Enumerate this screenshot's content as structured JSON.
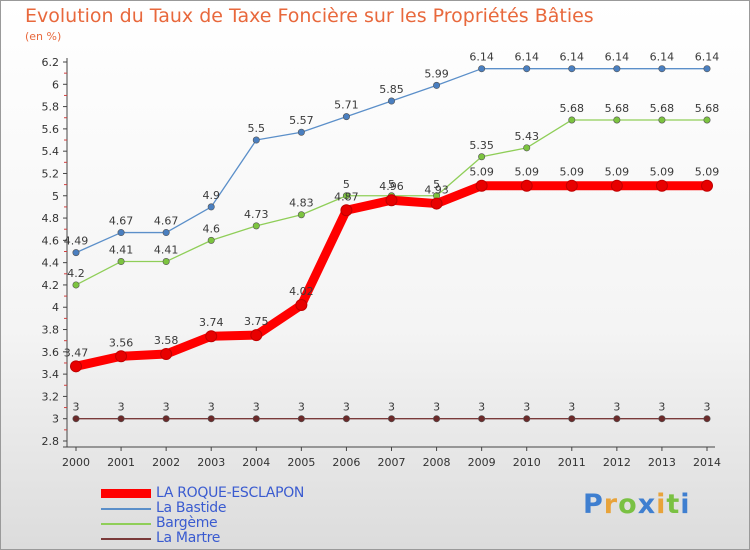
{
  "chart_data": {
    "type": "line",
    "title": "Evolution du Taux de Taxe Foncière sur les Propriétés Bâties",
    "unit_label": "(en %)",
    "x": [
      "2000",
      "2001",
      "2002",
      "2003",
      "2004",
      "2005",
      "2006",
      "2007",
      "2008",
      "2009",
      "2010",
      "2011",
      "2012",
      "2013",
      "2014"
    ],
    "ylim": [
      2.8,
      6.2
    ],
    "yticks": [
      "2.8",
      "3",
      "3.2",
      "3.4",
      "3.6",
      "3.8",
      "4",
      "4.2",
      "4.4",
      "4.6",
      "4.8",
      "5",
      "5.2",
      "5.4",
      "5.6",
      "5.8",
      "6",
      "6.2"
    ],
    "grid": false,
    "legend_position": "bottom-left",
    "series": [
      {
        "name": "La Bastide",
        "color": "#5b8fc9",
        "marker_color": "#4a7fc0",
        "values": [
          4.49,
          4.67,
          4.67,
          4.9,
          5.5,
          5.57,
          5.71,
          5.85,
          5.99,
          6.14,
          6.14,
          6.14,
          6.14,
          6.14,
          6.14
        ],
        "labels": [
          "4.49",
          "4.67",
          "4.67",
          "4.9",
          "5.5",
          "5.57",
          "5.71",
          "5.85",
          "5.99",
          "6.14",
          "6.14",
          "6.14",
          "6.14",
          "6.14",
          "6.14"
        ]
      },
      {
        "name": "Bargème",
        "color": "#8fce58",
        "marker_color": "#7cc43f",
        "values": [
          4.2,
          4.41,
          4.41,
          4.6,
          4.73,
          4.83,
          5.0,
          5.0,
          5.0,
          5.35,
          5.43,
          5.68,
          5.68,
          5.68,
          5.68
        ],
        "labels": [
          "4.2",
          "4.41",
          "4.41",
          "4.6",
          "4.73",
          "4.83",
          "5",
          "5",
          "5",
          "5.35",
          "5.43",
          "5.68",
          "5.68",
          "5.68",
          "5.68"
        ]
      },
      {
        "name": "La Martre",
        "color": "#7a3a3a",
        "marker_color": "#6b2a2a",
        "values": [
          3,
          3,
          3,
          3,
          3,
          3,
          3,
          3,
          3,
          3,
          3,
          3,
          3,
          3,
          3
        ],
        "labels": [
          "3",
          "3",
          "3",
          "3",
          "3",
          "3",
          "3",
          "3",
          "3",
          "3",
          "3",
          "3",
          "3",
          "3",
          "3"
        ]
      },
      {
        "name": "LA ROQUE-ESCLAPON",
        "color": "#ff0000",
        "marker_color": "#e80000",
        "values": [
          3.47,
          3.56,
          3.58,
          3.74,
          3.75,
          4.02,
          4.87,
          4.96,
          4.93,
          5.09,
          5.09,
          5.09,
          5.09,
          5.09,
          5.09
        ],
        "labels": [
          "3.47",
          "3.56",
          "3.58",
          "3.74",
          "3.75",
          "4.02",
          "4.87",
          "4.96",
          "4.93",
          "5.09",
          "5.09",
          "5.09",
          "5.09",
          "5.09",
          "5.09"
        ]
      }
    ],
    "legend": [
      {
        "name": "LA ROQUE-ESCLAPON",
        "color": "#ff0000"
      },
      {
        "name": "La Bastide",
        "color": "#5b8fc9"
      },
      {
        "name": "Bargème",
        "color": "#8fce58"
      },
      {
        "name": "La Martre",
        "color": "#7a3a3a"
      }
    ]
  },
  "logo": {
    "letters": [
      "P",
      "r",
      "o",
      "x",
      "i",
      "t",
      "i"
    ],
    "colors": [
      "#3f7fd0",
      "#e8a33a",
      "#7ac143",
      "#3f7fd0",
      "#e8a33a",
      "#7ac143",
      "#3f7fd0"
    ]
  }
}
